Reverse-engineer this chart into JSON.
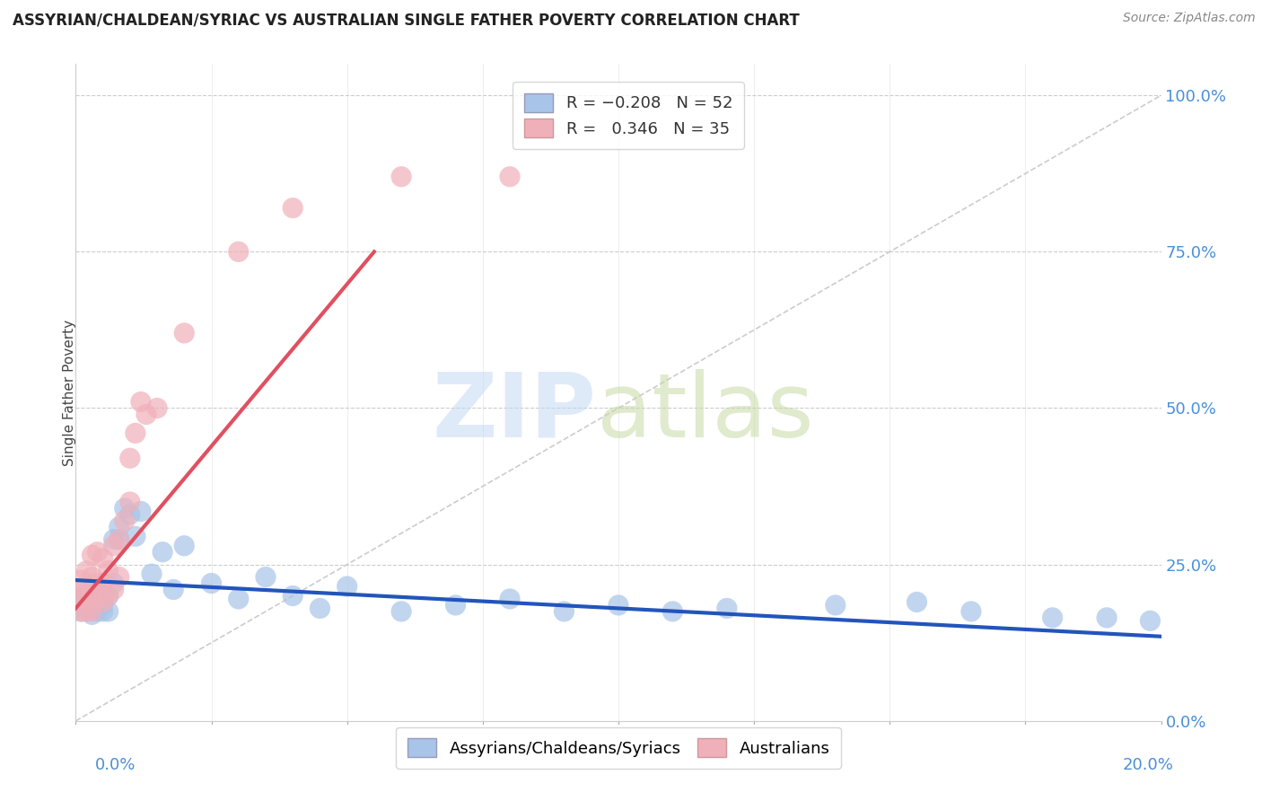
{
  "title": "ASSYRIAN/CHALDEAN/SYRIAC VS AUSTRALIAN SINGLE FATHER POVERTY CORRELATION CHART",
  "source": "Source: ZipAtlas.com",
  "ylabel": "Single Father Poverty",
  "legend_entry1_r": "-0.208",
  "legend_entry1_n": "52",
  "legend_entry2_r": "0.346",
  "legend_entry2_n": "35",
  "blue_color": "#a8c4e8",
  "pink_color": "#f0b0ba",
  "blue_line_color": "#2255bb",
  "pink_line_color": "#e05060",
  "right_axis_color": "#4a90d9",
  "xlim": [
    0.0,
    0.2
  ],
  "ylim": [
    0.0,
    1.05
  ],
  "background_color": "#ffffff",
  "grid_color": "#cccccc",
  "blue_points_x": [
    0.001,
    0.001,
    0.001,
    0.002,
    0.002,
    0.002,
    0.002,
    0.003,
    0.003,
    0.003,
    0.003,
    0.004,
    0.004,
    0.004,
    0.004,
    0.005,
    0.005,
    0.005,
    0.005,
    0.006,
    0.006,
    0.007,
    0.007,
    0.008,
    0.008,
    0.009,
    0.01,
    0.011,
    0.012,
    0.014,
    0.016,
    0.018,
    0.02,
    0.025,
    0.03,
    0.035,
    0.04,
    0.045,
    0.05,
    0.06,
    0.07,
    0.08,
    0.09,
    0.1,
    0.11,
    0.12,
    0.14,
    0.155,
    0.165,
    0.18,
    0.19,
    0.198
  ],
  "blue_points_y": [
    0.175,
    0.185,
    0.195,
    0.175,
    0.185,
    0.195,
    0.205,
    0.17,
    0.18,
    0.19,
    0.2,
    0.175,
    0.185,
    0.195,
    0.21,
    0.175,
    0.185,
    0.195,
    0.215,
    0.175,
    0.2,
    0.22,
    0.29,
    0.29,
    0.31,
    0.34,
    0.33,
    0.295,
    0.335,
    0.235,
    0.27,
    0.21,
    0.28,
    0.22,
    0.195,
    0.23,
    0.2,
    0.18,
    0.215,
    0.175,
    0.185,
    0.195,
    0.175,
    0.185,
    0.175,
    0.18,
    0.185,
    0.19,
    0.175,
    0.165,
    0.165,
    0.16
  ],
  "pink_points_x": [
    0.001,
    0.001,
    0.001,
    0.001,
    0.002,
    0.002,
    0.002,
    0.003,
    0.003,
    0.003,
    0.003,
    0.004,
    0.004,
    0.004,
    0.005,
    0.005,
    0.005,
    0.006,
    0.006,
    0.007,
    0.007,
    0.008,
    0.008,
    0.009,
    0.01,
    0.01,
    0.011,
    0.012,
    0.013,
    0.015,
    0.02,
    0.03,
    0.04,
    0.06,
    0.08
  ],
  "pink_points_y": [
    0.175,
    0.195,
    0.21,
    0.225,
    0.175,
    0.2,
    0.24,
    0.175,
    0.2,
    0.23,
    0.265,
    0.195,
    0.22,
    0.27,
    0.19,
    0.22,
    0.26,
    0.2,
    0.24,
    0.21,
    0.28,
    0.23,
    0.29,
    0.32,
    0.35,
    0.42,
    0.46,
    0.51,
    0.49,
    0.5,
    0.62,
    0.75,
    0.82,
    0.87,
    0.87
  ]
}
